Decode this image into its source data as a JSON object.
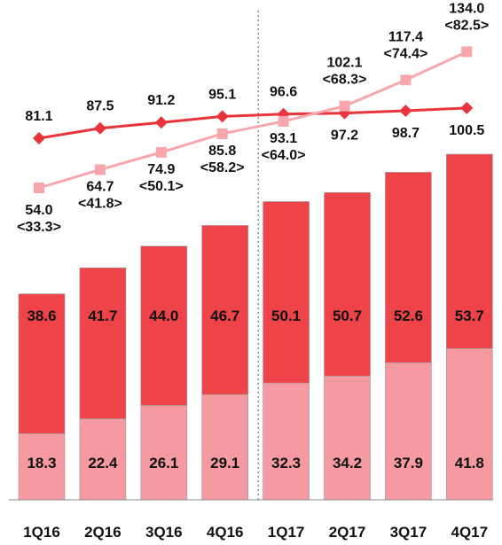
{
  "chart_data": {
    "type": "bar",
    "stacked": true,
    "categories": [
      "1Q16",
      "2Q16",
      "3Q16",
      "4Q16",
      "1Q17",
      "2Q17",
      "3Q17",
      "4Q17"
    ],
    "series": [
      {
        "values": [
          18.3,
          22.4,
          26.1,
          29.1,
          32.3,
          34.2,
          37.9,
          41.8
        ],
        "color": "#f49aa0"
      },
      {
        "values": [
          38.6,
          41.7,
          44.0,
          46.7,
          50.1,
          50.7,
          52.6,
          53.7
        ],
        "color": "#ee4449"
      }
    ],
    "lines": [
      {
        "marker": "diamond",
        "color": "#e8343a",
        "values": [
          81.1,
          87.5,
          91.2,
          95.1,
          96.6,
          97.2,
          98.7,
          100.5
        ]
      },
      {
        "marker": "square",
        "color": "#f7a7ac",
        "values": [
          54.0,
          64.7,
          74.9,
          85.8,
          93.1,
          102.1,
          117.4,
          134.0
        ],
        "secondary_labels": [
          "<33.3>",
          "<41.8>",
          "<50.1>",
          "<58.2>",
          "<64.0>",
          "<68.3>",
          "<74.4>",
          "<82.5>"
        ]
      }
    ],
    "divider_after_category": "4Q16",
    "grid": false,
    "legend": "none",
    "title": "",
    "xlabel": "",
    "ylabel": ""
  }
}
